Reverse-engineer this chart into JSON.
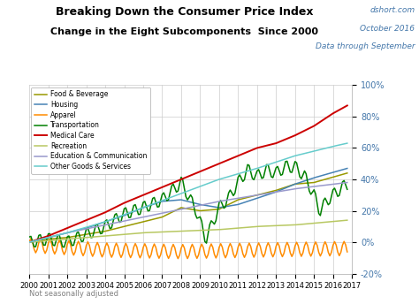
{
  "title1": "Breaking Down the Consumer Price Index",
  "title2": "Change in the Eight Subcomponents  Since 2000",
  "watermark_line1": "dshort.com",
  "watermark_line2": "October 2016",
  "watermark_line3": "Data through September",
  "note": "Not seasonally adjusted",
  "xlim": [
    2000,
    2017
  ],
  "ylim": [
    -0.2,
    1.0
  ],
  "yticks": [
    -0.2,
    0.0,
    0.2,
    0.4,
    0.6,
    0.8,
    1.0
  ],
  "ytick_labels": [
    "-20%",
    "0%",
    "20%",
    "40%",
    "60%",
    "80%",
    "100%"
  ],
  "xticks": [
    2000,
    2001,
    2002,
    2003,
    2004,
    2005,
    2006,
    2007,
    2008,
    2009,
    2010,
    2011,
    2012,
    2013,
    2014,
    2015,
    2016,
    2017
  ],
  "series": {
    "Food & Beverage": {
      "color": "#999900",
      "lw": 1.1
    },
    "Housing": {
      "color": "#4682B4",
      "lw": 1.1
    },
    "Apparel": {
      "color": "#FF8C00",
      "lw": 1.1
    },
    "Transportation": {
      "color": "#008000",
      "lw": 1.1
    },
    "Medical Care": {
      "color": "#CC0000",
      "lw": 1.4
    },
    "Recreation": {
      "color": "#B8C862",
      "lw": 1.1
    },
    "Education & Communication": {
      "color": "#9999CC",
      "lw": 1.1
    },
    "Other Goods & Services": {
      "color": "#66CCCC",
      "lw": 1.1
    }
  },
  "legend_order": [
    "Food & Beverage",
    "Housing",
    "Apparel",
    "Transportation",
    "Medical Care",
    "Recreation",
    "Education & Communication",
    "Other Goods & Services"
  ],
  "background_color": "#ffffff",
  "grid_color": "#cccccc"
}
